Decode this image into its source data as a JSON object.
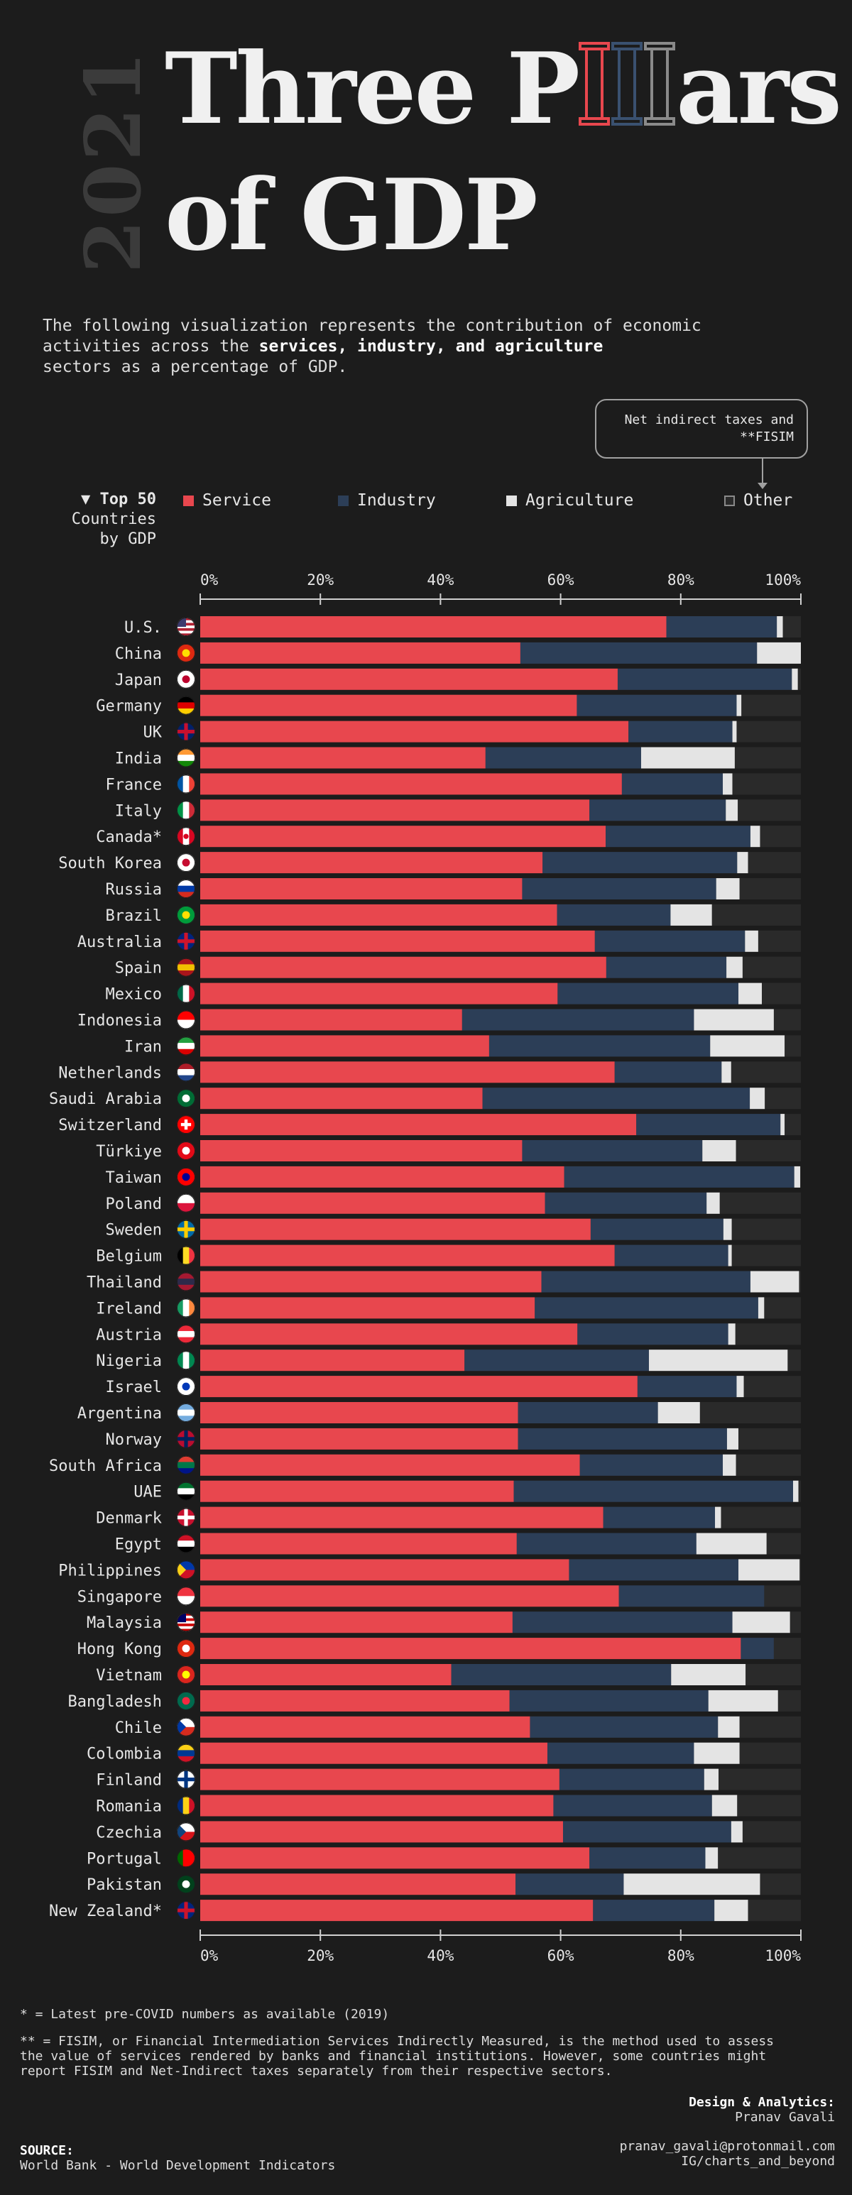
{
  "header": {
    "year": "2021",
    "title_line1_a": "Three P",
    "title_line1_b": "ars",
    "title_line2": "of GDP",
    "intro_1": "The following visualization represents the contribution of economic",
    "intro_2a": "activities across the ",
    "intro_2b": "services, industry, and agriculture",
    "intro_3": "sectors as a percentage of GDP."
  },
  "callout": {
    "line1": "Net indirect taxes and",
    "line2": "**FISIM"
  },
  "sort_label": {
    "line1": "▼ Top 50",
    "line2": "Countries",
    "line3": "by GDP"
  },
  "legend": [
    {
      "label": "Service",
      "color": "#e8474e"
    },
    {
      "label": "Industry",
      "color": "#2c3e57"
    },
    {
      "label": "Agriculture",
      "color": "#e4e4e4"
    },
    {
      "label": "Other",
      "color": "#2a2a2a"
    }
  ],
  "chart_data": {
    "type": "bar",
    "orientation": "horizontal",
    "stacked": true,
    "xlim": [
      0,
      100
    ],
    "ticks": [
      "0%",
      "20%",
      "40%",
      "60%",
      "80%",
      "100%"
    ],
    "categories": [
      "U.S.",
      "China",
      "Japan",
      "Germany",
      "UK",
      "India",
      "France",
      "Italy",
      "Canada*",
      "South Korea",
      "Russia",
      "Brazil",
      "Australia",
      "Spain",
      "Mexico",
      "Indonesia",
      "Iran",
      "Netherlands",
      "Saudi Arabia",
      "Switzerland",
      "Türkiye",
      "Taiwan",
      "Poland",
      "Sweden",
      "Belgium",
      "Thailand",
      "Ireland",
      "Austria",
      "Nigeria",
      "Israel",
      "Argentina",
      "Norway",
      "South Africa",
      "UAE",
      "Denmark",
      "Egypt",
      "Philippines",
      "Singapore",
      "Malaysia",
      "Hong Kong",
      "Vietnam",
      "Bangladesh",
      "Chile",
      "Colombia",
      "Finland",
      "Romania",
      "Czechia",
      "Portugal",
      "Pakistan",
      "New Zealand*"
    ],
    "series": [
      {
        "name": "Service",
        "values": [
          77.6,
          53.3,
          69.5,
          62.7,
          71.3,
          47.5,
          70.2,
          64.8,
          67.5,
          57.0,
          53.6,
          59.4,
          65.7,
          67.6,
          59.5,
          43.6,
          48.1,
          69.0,
          47.0,
          72.6,
          53.6,
          60.6,
          57.4,
          65.0,
          69.0,
          56.8,
          55.7,
          62.8,
          44.0,
          72.8,
          52.9,
          52.9,
          63.2,
          52.2,
          67.1,
          52.7,
          61.4,
          69.7,
          52.0,
          90.0,
          41.8,
          51.5,
          54.9,
          57.8,
          59.8,
          58.8,
          60.4,
          64.8,
          52.5,
          65.4
        ]
      },
      {
        "name": "Industry",
        "values": [
          18.4,
          39.4,
          29.0,
          26.6,
          17.3,
          25.9,
          16.8,
          22.7,
          24.1,
          32.4,
          32.3,
          18.9,
          25.0,
          20.0,
          30.1,
          38.6,
          36.8,
          17.8,
          44.5,
          24.0,
          30.0,
          38.3,
          26.9,
          22.1,
          18.9,
          34.8,
          37.2,
          25.1,
          30.7,
          16.5,
          23.3,
          34.8,
          23.8,
          46.5,
          18.6,
          29.9,
          28.2,
          24.2,
          36.6,
          5.5,
          36.6,
          33.1,
          31.3,
          24.4,
          24.1,
          26.4,
          28.0,
          19.3,
          18.0,
          20.2
        ]
      },
      {
        "name": "Agriculture",
        "values": [
          1.0,
          7.3,
          1.0,
          0.8,
          0.7,
          15.6,
          1.6,
          2.0,
          1.6,
          1.8,
          3.9,
          6.9,
          2.2,
          2.7,
          3.9,
          13.3,
          12.4,
          1.6,
          2.5,
          0.7,
          5.6,
          1.0,
          2.2,
          1.4,
          0.6,
          8.1,
          1.0,
          1.2,
          23.1,
          1.2,
          7.0,
          1.9,
          2.2,
          0.9,
          1.0,
          11.7,
          10.2,
          0.0,
          9.6,
          0.0,
          12.4,
          11.6,
          3.6,
          7.6,
          2.4,
          4.2,
          1.9,
          2.1,
          22.7,
          5.6
        ]
      },
      {
        "name": "Other",
        "values": [
          3.0,
          0.0,
          0.5,
          9.9,
          10.7,
          11.0,
          11.4,
          10.5,
          6.8,
          8.8,
          10.2,
          14.8,
          7.1,
          9.7,
          6.5,
          4.5,
          2.7,
          11.6,
          6.0,
          2.7,
          10.8,
          0.1,
          13.5,
          11.5,
          11.5,
          0.3,
          6.1,
          10.9,
          2.2,
          9.5,
          16.8,
          10.4,
          10.8,
          0.4,
          13.3,
          5.7,
          0.2,
          6.1,
          1.8,
          4.5,
          9.2,
          3.8,
          10.2,
          10.2,
          13.7,
          10.6,
          9.7,
          13.8,
          6.8,
          8.8
        ]
      }
    ],
    "flags": [
      {
        "type": "us"
      },
      {
        "type": "dot",
        "base": "#de2910",
        "mark": "#ffde00"
      },
      {
        "type": "dot",
        "base": "#ffffff",
        "mark": "#bc002d"
      },
      {
        "type": "h3",
        "stripes": [
          "#000000",
          "#dd0000",
          "#ffce00"
        ]
      },
      {
        "type": "cross",
        "base": "#012169",
        "mark": "#c8102e"
      },
      {
        "type": "h3",
        "stripes": [
          "#ff9933",
          "#ffffff",
          "#138808"
        ]
      },
      {
        "type": "v3",
        "stripes": [
          "#0055a4",
          "#ffffff",
          "#ef4135"
        ]
      },
      {
        "type": "v3",
        "stripes": [
          "#009246",
          "#ffffff",
          "#ce2b37"
        ]
      },
      {
        "type": "v3",
        "stripes": [
          "#d80621",
          "#ffffff",
          "#d80621"
        ],
        "mark": "#d80621"
      },
      {
        "type": "dot",
        "base": "#ffffff",
        "mark": "#c60c30"
      },
      {
        "type": "h3",
        "stripes": [
          "#ffffff",
          "#0039a6",
          "#d52b1e"
        ]
      },
      {
        "type": "dot",
        "base": "#009c3b",
        "mark": "#ffdf00"
      },
      {
        "type": "cross",
        "base": "#00247d",
        "mark": "#cf142b"
      },
      {
        "type": "h3",
        "stripes": [
          "#aa151b",
          "#f1bf00",
          "#aa151b"
        ]
      },
      {
        "type": "v3",
        "stripes": [
          "#006847",
          "#ffffff",
          "#ce1126"
        ]
      },
      {
        "type": "h2",
        "stripes": [
          "#ff0000",
          "#ffffff"
        ]
      },
      {
        "type": "h3",
        "stripes": [
          "#239f40",
          "#ffffff",
          "#da0000"
        ]
      },
      {
        "type": "h3",
        "stripes": [
          "#ae1c28",
          "#ffffff",
          "#21468b"
        ]
      },
      {
        "type": "dot",
        "base": "#006c35",
        "mark": "#ffffff"
      },
      {
        "type": "plus",
        "base": "#ff0000",
        "mark": "#ffffff"
      },
      {
        "type": "dot",
        "base": "#e30a17",
        "mark": "#ffffff"
      },
      {
        "type": "dot",
        "base": "#fe0000",
        "mark": "#000095"
      },
      {
        "type": "h2",
        "stripes": [
          "#ffffff",
          "#dc143c"
        ]
      },
      {
        "type": "cross",
        "base": "#006aa7",
        "mark": "#fecc00"
      },
      {
        "type": "v3",
        "stripes": [
          "#000000",
          "#fdda24",
          "#ef3340"
        ]
      },
      {
        "type": "h3",
        "stripes": [
          "#a51931",
          "#2d2a4a",
          "#a51931"
        ]
      },
      {
        "type": "v3",
        "stripes": [
          "#169b62",
          "#ffffff",
          "#ff883e"
        ]
      },
      {
        "type": "h3",
        "stripes": [
          "#ed2939",
          "#ffffff",
          "#ed2939"
        ]
      },
      {
        "type": "v3",
        "stripes": [
          "#008751",
          "#ffffff",
          "#008751"
        ]
      },
      {
        "type": "dot",
        "base": "#ffffff",
        "mark": "#0038b8"
      },
      {
        "type": "h3",
        "stripes": [
          "#74acdf",
          "#ffffff",
          "#74acdf"
        ]
      },
      {
        "type": "cross",
        "base": "#ba0c2f",
        "mark": "#00205b"
      },
      {
        "type": "h3",
        "stripes": [
          "#e03c31",
          "#007749",
          "#001489"
        ]
      },
      {
        "type": "h3",
        "stripes": [
          "#00732f",
          "#ffffff",
          "#000000"
        ]
      },
      {
        "type": "cross",
        "base": "#c8102e",
        "mark": "#ffffff"
      },
      {
        "type": "h3",
        "stripes": [
          "#ce1126",
          "#ffffff",
          "#000000"
        ]
      },
      {
        "type": "h2",
        "stripes": [
          "#0038a8",
          "#ce1126"
        ],
        "mark": "#fcd116"
      },
      {
        "type": "h2",
        "stripes": [
          "#ef3340",
          "#ffffff"
        ]
      },
      {
        "type": "us",
        "colors": [
          "#cc0001",
          "#ffffff",
          "#010066"
        ]
      },
      {
        "type": "dot",
        "base": "#de2910",
        "mark": "#ffffff"
      },
      {
        "type": "dot",
        "base": "#da251d",
        "mark": "#ffff00"
      },
      {
        "type": "dot",
        "base": "#006a4e",
        "mark": "#f42a41"
      },
      {
        "type": "h2",
        "stripes": [
          "#ffffff",
          "#d52b1e"
        ],
        "mark": "#0039a6"
      },
      {
        "type": "h3",
        "stripes": [
          "#fcd116",
          "#003893",
          "#ce1126"
        ]
      },
      {
        "type": "cross",
        "base": "#ffffff",
        "mark": "#003580"
      },
      {
        "type": "v3",
        "stripes": [
          "#002b7f",
          "#fcd116",
          "#ce1126"
        ]
      },
      {
        "type": "h2",
        "stripes": [
          "#ffffff",
          "#d7141a"
        ],
        "mark": "#11457e"
      },
      {
        "type": "v3",
        "stripes": [
          "#006600",
          "#ff0000",
          "#ff0000"
        ]
      },
      {
        "type": "dot",
        "base": "#01411c",
        "mark": "#ffffff"
      },
      {
        "type": "cross",
        "base": "#00247d",
        "mark": "#cc142b"
      }
    ]
  },
  "footer": {
    "note1": "* = Latest pre-COVID numbers as available (2019)",
    "note2_1": "** = FISIM, or Financial Intermediation Services Indirectly Measured, is the method used to assess",
    "note2_2": "the value of services rendered by banks and financial institutions. However, some countries might",
    "note2_3": "report FISIM and Net-Indirect taxes separately from their respective sectors.",
    "credit_label": "Design & Analytics:",
    "credit_name": "Pranav Gavali",
    "source_label": "SOURCE:",
    "source_text": "World Bank - World Development Indicators",
    "email": "pranav_gavali@protonmail.com",
    "handle": "IG/charts_and_beyond"
  }
}
